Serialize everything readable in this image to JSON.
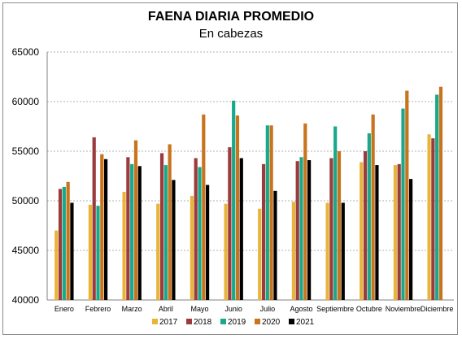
{
  "chart_data": {
    "type": "bar",
    "title": "FAENA DIARIA PROMEDIO",
    "subtitle": "En cabezas",
    "xlabel": "",
    "ylabel": "",
    "ylim": [
      40000,
      65000
    ],
    "yticks": [
      "40000",
      "45000",
      "50000",
      "55000",
      "60000",
      "65000"
    ],
    "grid": true,
    "legend": "bottom",
    "categories": [
      "Enero",
      "Febrero",
      "Marzo",
      "Abril",
      "Mayo",
      "Junio",
      "Julio",
      "Agosto",
      "Septiembre",
      "Octubre",
      "Noviembre",
      "Diciembre"
    ],
    "series": [
      {
        "name": "2017",
        "color": "#e8b53a",
        "values": [
          47000,
          49600,
          50900,
          49700,
          50500,
          49700,
          49200,
          49900,
          49800,
          53900,
          53600,
          56700
        ]
      },
      {
        "name": "2018",
        "color": "#9b3b3b",
        "values": [
          51200,
          56400,
          54400,
          54800,
          54300,
          55400,
          53700,
          54000,
          54300,
          55000,
          53700,
          56300
        ]
      },
      {
        "name": "2019",
        "color": "#1aa88a",
        "values": [
          51400,
          49500,
          53700,
          53600,
          53400,
          60100,
          57600,
          54400,
          57500,
          56800,
          59300,
          60700
        ]
      },
      {
        "name": "2020",
        "color": "#c8741e",
        "values": [
          51900,
          54700,
          56100,
          55700,
          58700,
          58600,
          57600,
          57800,
          55000,
          58700,
          61100,
          61500
        ]
      },
      {
        "name": "2021",
        "color": "#000000",
        "values": [
          49800,
          54200,
          53500,
          52100,
          51600,
          54300,
          51000,
          54100,
          49800,
          53600,
          52200,
          null
        ]
      }
    ]
  }
}
